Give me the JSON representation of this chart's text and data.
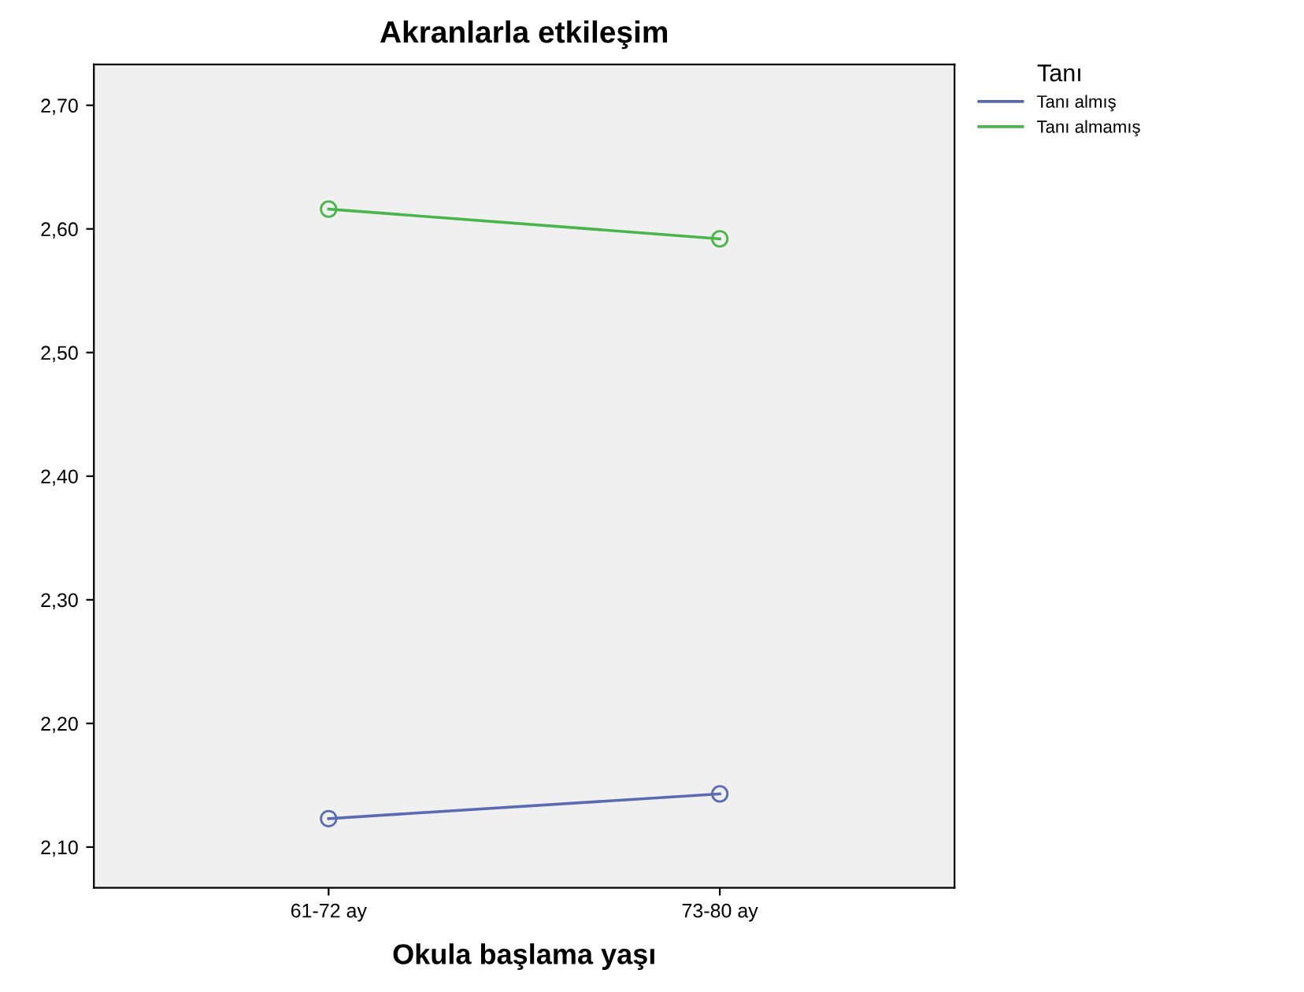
{
  "chart_data": {
    "type": "line",
    "title": "Akranlarla etkileşim",
    "xlabel": "Okula başlama yaşı",
    "legend_title": "Tanı",
    "categories": [
      "61-72 ay",
      "73-80 ay"
    ],
    "series": [
      {
        "name": "Tanı almış",
        "color": "#5b6bb3",
        "values": [
          2.123,
          2.143
        ]
      },
      {
        "name": "Tanı almamış",
        "color": "#49b54a",
        "values": [
          2.616,
          2.592
        ]
      }
    ],
    "ylim": [
      2.067,
      2.733
    ],
    "yticks": [
      {
        "value": 2.1,
        "label": "2,10"
      },
      {
        "value": 2.2,
        "label": "2,20"
      },
      {
        "value": 2.3,
        "label": "2,30"
      },
      {
        "value": 2.4,
        "label": "2,40"
      },
      {
        "value": 2.5,
        "label": "2,50"
      },
      {
        "value": 2.6,
        "label": "2,60"
      },
      {
        "value": 2.7,
        "label": "2,70"
      }
    ],
    "marker": "circle",
    "line_style": "solid",
    "legend": "top right",
    "grid": false
  }
}
